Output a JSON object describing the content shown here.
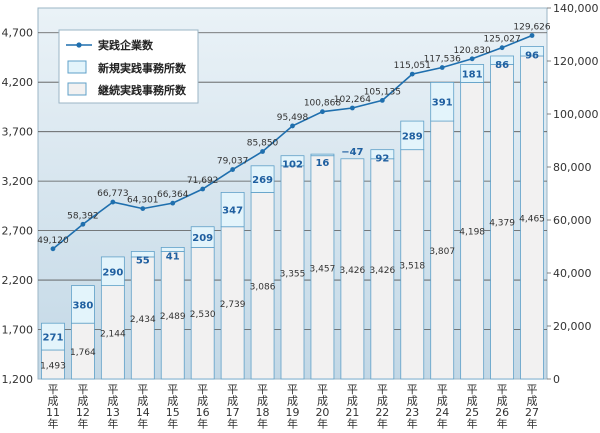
{
  "chart_data": {
    "type": "bar+line",
    "categories": [
      [
        "平",
        "成",
        "11",
        "年"
      ],
      [
        "平",
        "成",
        "12",
        "年"
      ],
      [
        "平",
        "成",
        "13",
        "年"
      ],
      [
        "平",
        "成",
        "14",
        "年"
      ],
      [
        "平",
        "成",
        "15",
        "年"
      ],
      [
        "平",
        "成",
        "16",
        "年"
      ],
      [
        "平",
        "成",
        "17",
        "年"
      ],
      [
        "平",
        "成",
        "18",
        "年"
      ],
      [
        "平",
        "成",
        "19",
        "年"
      ],
      [
        "平",
        "成",
        "20",
        "年"
      ],
      [
        "平",
        "成",
        "21",
        "年"
      ],
      [
        "平",
        "成",
        "22",
        "年"
      ],
      [
        "平",
        "成",
        "23",
        "年"
      ],
      [
        "平",
        "成",
        "24",
        "年"
      ],
      [
        "平",
        "成",
        "25",
        "年"
      ],
      [
        "平",
        "成",
        "26",
        "年"
      ],
      [
        "平",
        "成",
        "27",
        "年"
      ]
    ],
    "series": [
      {
        "name": "実践企業数",
        "axis": "right",
        "kind": "line",
        "values": [
          49120,
          58392,
          66773,
          64301,
          66364,
          71692,
          79037,
          85850,
          95498,
          100868,
          102264,
          105135,
          115051,
          117536,
          120830,
          125027,
          129626
        ],
        "labels": [
          "49,120",
          "58,392",
          "66,773",
          "64,301",
          "66,364",
          "71,692",
          "79,037",
          "85,850",
          "95,498",
          "100,868",
          "102,264",
          "105,135",
          "115,051",
          "117,536",
          "120,830",
          "125,027",
          "129,626"
        ]
      },
      {
        "name": "新規実践事務所数",
        "axis": "left",
        "kind": "bar-stack-top",
        "values": [
          271,
          380,
          290,
          55,
          41,
          209,
          347,
          269,
          102,
          16,
          -47,
          92,
          289,
          391,
          181,
          86,
          96
        ],
        "labels": [
          "271",
          "380",
          "290",
          "55",
          "41",
          "209",
          "347",
          "269",
          "102",
          "16",
          "−47",
          "92",
          "289",
          "391",
          "181",
          "86",
          "96"
        ]
      },
      {
        "name": "継続実践事務所数",
        "axis": "left",
        "kind": "bar-stack-base",
        "values": [
          1493,
          1764,
          2144,
          2434,
          2489,
          2530,
          2739,
          3086,
          3355,
          3457,
          3426,
          3426,
          3518,
          3807,
          4198,
          4379,
          4465
        ],
        "labels": [
          "1,493",
          "1,764",
          "2,144",
          "2,434",
          "2,489",
          "2,530",
          "2,739",
          "3,086",
          "3,355",
          "3,457",
          "3,426",
          "3,426",
          "3,518",
          "3,807",
          "4,198",
          "4,379",
          "4,465"
        ]
      }
    ],
    "left_axis": {
      "min": 1200,
      "max": 4950,
      "ticks": [
        1200,
        1700,
        2200,
        2700,
        3200,
        3700,
        4200,
        4700
      ],
      "tick_labels": [
        "1,200",
        "1,700",
        "2,200",
        "2,700",
        "3,200",
        "3,700",
        "4,200",
        "4,700"
      ]
    },
    "right_axis": {
      "min": 0,
      "max": 140000,
      "ticks": [
        0,
        20000,
        40000,
        60000,
        80000,
        100000,
        120000,
        140000
      ],
      "tick_labels": [
        "0",
        "20,000",
        "40,000",
        "60,000",
        "80,000",
        "100,000",
        "120,000",
        "140,000"
      ]
    },
    "legend_position": "top-left",
    "grid": true
  },
  "colors": {
    "panel": "#c9dce8",
    "continuing_bar": "#f2f1f1",
    "new_bar": "#e3f4fb",
    "bar_stroke": "#5fa0c8",
    "line": "#1f6fae",
    "grid": "#555555"
  }
}
